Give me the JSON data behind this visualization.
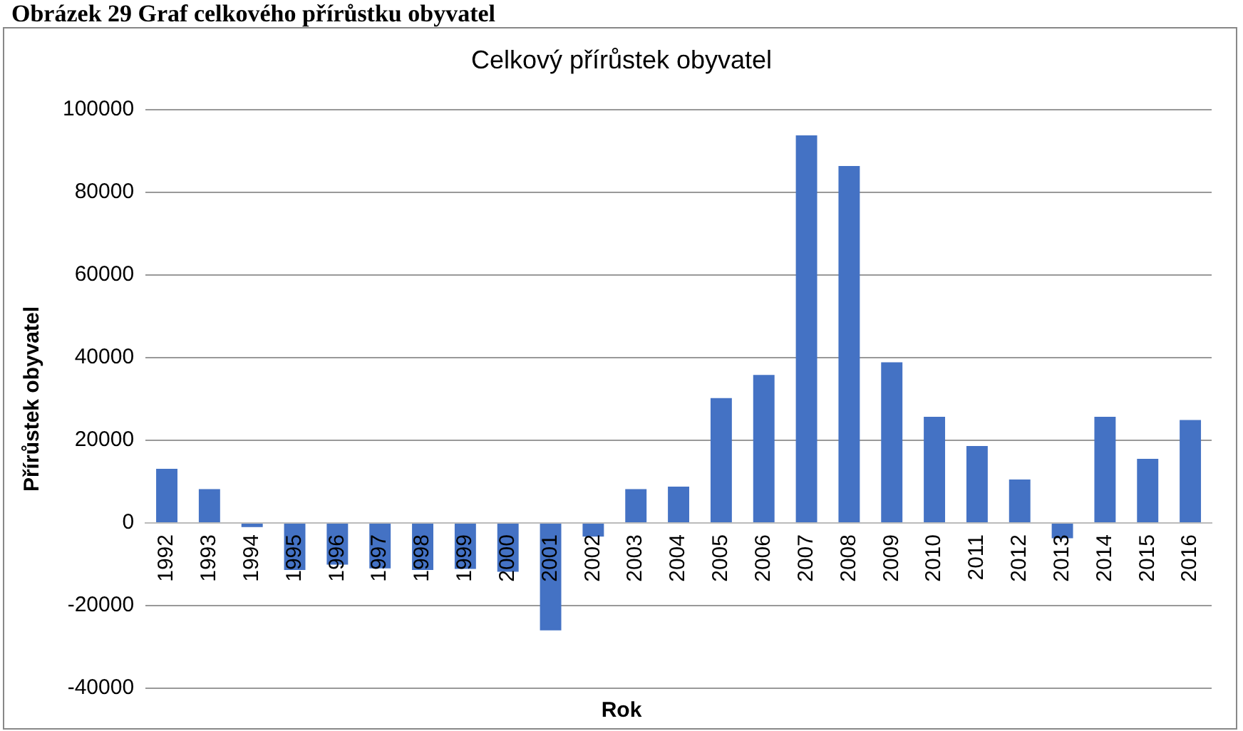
{
  "chart_data": {
    "type": "bar",
    "title": "Celkový přírůstek obyvatel",
    "xlabel": "Rok",
    "ylabel": "Přírůstek obyvatel",
    "annotations": [
      "Obrázek 29 Graf celkového přírůstku obyvatel"
    ],
    "categories": [
      "1992",
      "1993",
      "1994",
      "1995",
      "1996",
      "1997",
      "1998",
      "1999",
      "2000",
      "2001",
      "2002",
      "2003",
      "2004",
      "2005",
      "2006",
      "2007",
      "2008",
      "2009",
      "2010",
      "2011",
      "2012",
      "2013",
      "2014",
      "2015",
      "2016"
    ],
    "values": [
      13100,
      8200,
      -1000,
      -11400,
      -10100,
      -11000,
      -11400,
      -11100,
      -11800,
      -26000,
      -3300,
      8200,
      8800,
      30200,
      35800,
      93800,
      86400,
      38900,
      25700,
      18600,
      10500,
      -3700,
      25700,
      15500,
      24900
    ],
    "color": "#4472c4",
    "ylim": [
      -40000,
      100000
    ],
    "yticks": [
      -40000,
      -20000,
      0,
      20000,
      40000,
      60000,
      80000,
      100000
    ],
    "grid": "y"
  }
}
